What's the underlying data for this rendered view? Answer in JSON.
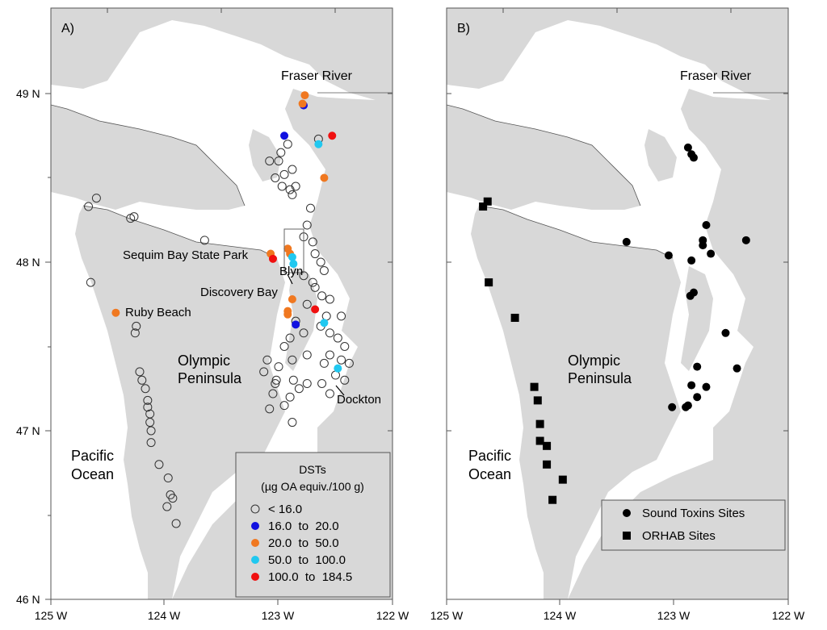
{
  "panel_a": {
    "letter": "A)",
    "place_labels": {
      "fraser": "Fraser River",
      "sequim": "Sequim Bay State Park",
      "blyn": "Blyn",
      "discovery": "Discovery Bay",
      "ruby": "Ruby Beach",
      "olympic1": "Olympic",
      "olympic2": "Peninsula",
      "dockton": "Dockton",
      "pacific1": "Pacific",
      "pacific2": "Ocean"
    },
    "legend": {
      "title1": "DSTs",
      "title2": "(µg OA equiv./100 g)",
      "items": [
        {
          "label": "< 16.0",
          "color": "#ffffff",
          "outline": true
        },
        {
          "label": "16.0  to  20.0",
          "color": "#1010e0"
        },
        {
          "label": "20.0  to  50.0",
          "color": "#f07820"
        },
        {
          "label": "50.0  to  100.0",
          "color": "#20c8f0"
        },
        {
          "label": "100.0  to  184.5",
          "color": "#f01010"
        }
      ]
    }
  },
  "panel_b": {
    "letter": "B)",
    "place_labels": {
      "fraser": "Fraser River",
      "olympic1": "Olympic",
      "olympic2": "Peninsula",
      "pacific1": "Pacific",
      "pacific2": "Ocean"
    },
    "legend": {
      "items": [
        {
          "label": "Sound Toxins Sites",
          "marker": "circle"
        },
        {
          "label": "ORHAB Sites",
          "marker": "square"
        }
      ]
    }
  },
  "axes": {
    "lat_ticks": [
      "49 N",
      "48 N",
      "47 N",
      "46 N"
    ],
    "lon_ticks": [
      "125 W",
      "124 W",
      "123 W",
      "122 W"
    ]
  },
  "colors": {
    "land": "#d8d8d8",
    "water": "#ffffff",
    "blue": "#1010e0",
    "orange": "#f07820",
    "cyan": "#20c8f0",
    "red": "#f01010",
    "black": "#000000"
  },
  "sites_a": {
    "white": [
      [
        -124.6,
        48.38
      ],
      [
        -124.67,
        48.33
      ],
      [
        -124.27,
        48.27
      ],
      [
        -124.3,
        48.26
      ],
      [
        -123.65,
        48.13
      ],
      [
        -124.65,
        47.88
      ],
      [
        -124.25,
        47.62
      ],
      [
        -124.26,
        47.58
      ],
      [
        -124.22,
        47.35
      ],
      [
        -124.2,
        47.3
      ],
      [
        -124.17,
        47.25
      ],
      [
        -124.15,
        47.18
      ],
      [
        -124.15,
        47.14
      ],
      [
        -124.13,
        47.1
      ],
      [
        -124.13,
        47.05
      ],
      [
        -124.12,
        47.0
      ],
      [
        -124.12,
        46.93
      ],
      [
        -124.05,
        46.8
      ],
      [
        -123.97,
        46.72
      ],
      [
        -123.95,
        46.62
      ],
      [
        -123.93,
        46.6
      ],
      [
        -123.98,
        46.55
      ],
      [
        -123.9,
        46.45
      ],
      [
        -122.92,
        48.7
      ],
      [
        -122.98,
        48.65
      ],
      [
        -123.0,
        48.6
      ],
      [
        -123.08,
        48.6
      ],
      [
        -122.88,
        48.55
      ],
      [
        -122.95,
        48.52
      ],
      [
        -123.03,
        48.5
      ],
      [
        -122.85,
        48.45
      ],
      [
        -122.9,
        48.43
      ],
      [
        -122.97,
        48.45
      ],
      [
        -122.88,
        48.4
      ],
      [
        -122.65,
        48.73
      ],
      [
        -122.72,
        48.32
      ],
      [
        -122.75,
        48.22
      ],
      [
        -122.78,
        48.15
      ],
      [
        -122.7,
        48.12
      ],
      [
        -122.68,
        48.05
      ],
      [
        -122.63,
        48.0
      ],
      [
        -122.6,
        47.95
      ],
      [
        -122.78,
        47.92
      ],
      [
        -122.7,
        47.88
      ],
      [
        -122.68,
        47.85
      ],
      [
        -122.62,
        47.8
      ],
      [
        -122.55,
        47.78
      ],
      [
        -122.75,
        47.75
      ],
      [
        -122.45,
        47.68
      ],
      [
        -122.58,
        47.68
      ],
      [
        -122.63,
        47.62
      ],
      [
        -122.55,
        47.58
      ],
      [
        -122.48,
        47.55
      ],
      [
        -122.42,
        47.5
      ],
      [
        -122.55,
        47.45
      ],
      [
        -122.45,
        47.42
      ],
      [
        -122.6,
        47.4
      ],
      [
        -122.5,
        47.33
      ],
      [
        -122.62,
        47.28
      ],
      [
        -122.75,
        47.28
      ],
      [
        -122.82,
        47.25
      ],
      [
        -122.9,
        47.2
      ],
      [
        -122.95,
        47.15
      ],
      [
        -123.05,
        47.22
      ],
      [
        -123.08,
        47.13
      ],
      [
        -123.03,
        47.28
      ],
      [
        -123.0,
        47.38
      ],
      [
        -123.1,
        47.42
      ],
      [
        -123.13,
        47.35
      ],
      [
        -122.88,
        47.42
      ],
      [
        -122.9,
        47.55
      ],
      [
        -122.78,
        47.58
      ],
      [
        -122.85,
        47.65
      ],
      [
        -122.95,
        47.5
      ],
      [
        -122.87,
        47.3
      ],
      [
        -122.55,
        47.22
      ],
      [
        -122.42,
        47.3
      ],
      [
        -122.38,
        47.4
      ],
      [
        -122.88,
        47.05
      ],
      [
        -123.02,
        47.3
      ],
      [
        -122.75,
        47.45
      ]
    ],
    "blue": [
      [
        -122.78,
        48.93
      ],
      [
        -122.95,
        48.75
      ],
      [
        -122.85,
        47.63
      ]
    ],
    "orange": [
      [
        -122.77,
        48.99
      ],
      [
        -122.79,
        48.94
      ],
      [
        -122.6,
        48.5
      ],
      [
        -123.07,
        48.05
      ],
      [
        -122.92,
        48.08
      ],
      [
        -122.9,
        48.05
      ],
      [
        -122.88,
        47.78
      ],
      [
        -122.92,
        47.69
      ],
      [
        -122.92,
        47.71
      ],
      [
        -124.43,
        47.7
      ]
    ],
    "cyan": [
      [
        -122.65,
        48.7
      ],
      [
        -122.88,
        48.03
      ],
      [
        -122.87,
        47.99
      ],
      [
        -122.6,
        47.64
      ],
      [
        -122.48,
        47.37
      ]
    ],
    "red": [
      [
        -122.53,
        48.75
      ],
      [
        -123.05,
        48.02
      ],
      [
        -122.68,
        47.72
      ]
    ]
  },
  "sites_b": {
    "circle": [
      [
        -122.88,
        48.68
      ],
      [
        -122.85,
        48.64
      ],
      [
        -122.83,
        48.62
      ],
      [
        -122.72,
        48.22
      ],
      [
        -122.75,
        48.13
      ],
      [
        -122.75,
        48.1
      ],
      [
        -122.68,
        48.05
      ],
      [
        -122.37,
        48.13
      ],
      [
        -123.42,
        48.12
      ],
      [
        -123.05,
        48.04
      ],
      [
        -122.85,
        48.01
      ],
      [
        -122.83,
        47.82
      ],
      [
        -122.86,
        47.8
      ],
      [
        -122.55,
        47.58
      ],
      [
        -122.45,
        47.37
      ],
      [
        -122.8,
        47.38
      ],
      [
        -122.85,
        47.27
      ],
      [
        -122.72,
        47.26
      ],
      [
        -122.8,
        47.2
      ],
      [
        -122.88,
        47.15
      ],
      [
        -123.02,
        47.14
      ],
      [
        -122.9,
        47.14
      ]
    ],
    "square": [
      [
        -124.64,
        48.36
      ],
      [
        -124.68,
        48.33
      ],
      [
        -124.63,
        47.88
      ],
      [
        -124.4,
        47.67
      ],
      [
        -124.23,
        47.26
      ],
      [
        -124.2,
        47.18
      ],
      [
        -124.18,
        47.04
      ],
      [
        -124.18,
        46.94
      ],
      [
        -124.12,
        46.91
      ],
      [
        -124.12,
        46.8
      ],
      [
        -123.98,
        46.71
      ],
      [
        -124.07,
        46.59
      ]
    ]
  }
}
